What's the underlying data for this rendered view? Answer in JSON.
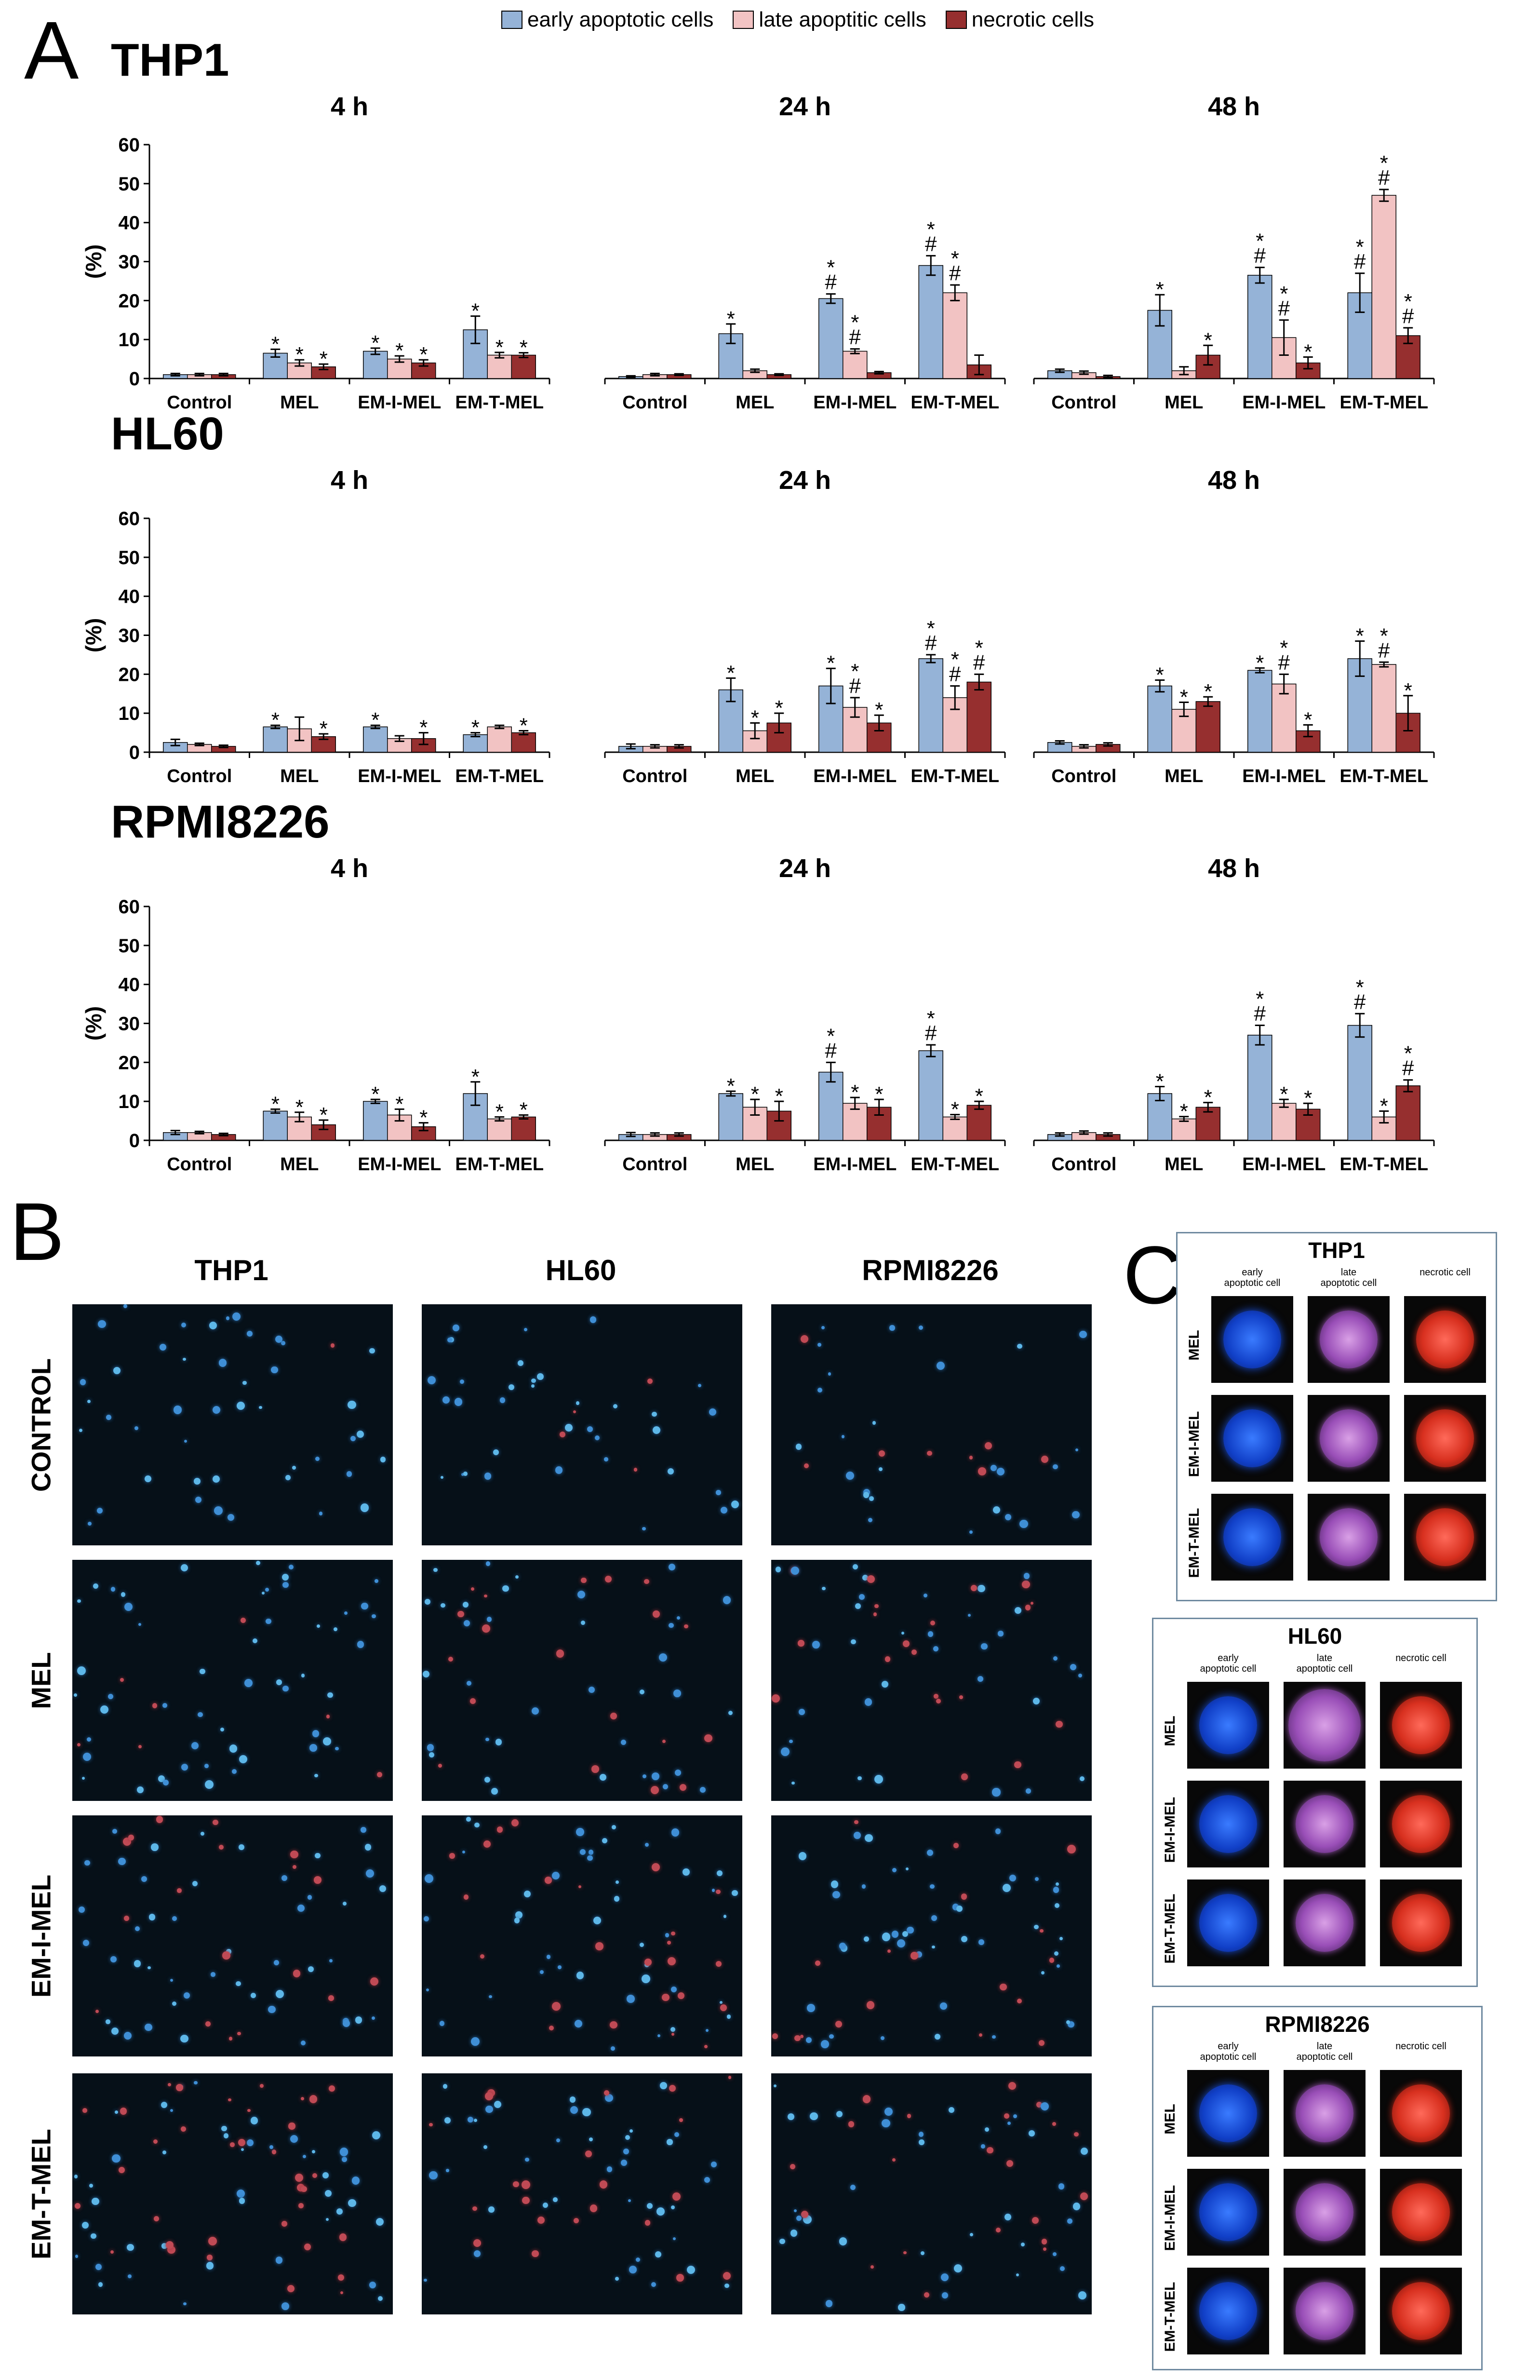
{
  "panels": {
    "a": "A",
    "b": "B",
    "c": "C"
  },
  "legend": [
    {
      "label": "early apoptotic cells",
      "color": "#95b3d7"
    },
    {
      "label": "late apoptitic cells",
      "color": "#f2c3c3"
    },
    {
      "label": "necrotic cells",
      "color": "#962f2f"
    }
  ],
  "chart_data": {
    "type": "bar",
    "ylabel": "(%)",
    "ylim": [
      0,
      60
    ],
    "yticks": [
      0,
      10,
      20,
      30,
      40,
      50,
      60
    ],
    "series_names": [
      "early apoptotic cells",
      "late apoptitic cells",
      "necrotic cells"
    ],
    "categories": [
      "Control",
      "MEL",
      "EM-I-MEL",
      "EM-T-MEL"
    ],
    "cell_lines": [
      {
        "name": "THP1",
        "panels": [
          {
            "title": "4 h",
            "values": [
              [
                1,
                1,
                1
              ],
              [
                6.5,
                4,
                3
              ],
              [
                7,
                5,
                4
              ],
              [
                12.5,
                6,
                6
              ]
            ],
            "errors": [
              [
                0.3,
                0.3,
                0.3
              ],
              [
                1,
                0.8,
                0.7
              ],
              [
                0.8,
                0.8,
                0.8
              ],
              [
                3.5,
                0.7,
                0.6
              ]
            ],
            "marks": [
              [
                "",
                "",
                ""
              ],
              [
                "*",
                "*",
                "*"
              ],
              [
                "*",
                "*",
                "*"
              ],
              [
                "*",
                "*",
                "*"
              ]
            ]
          },
          {
            "title": "24 h",
            "values": [
              [
                0.5,
                1,
                1
              ],
              [
                11.5,
                2,
                1
              ],
              [
                20.5,
                7,
                1.5
              ],
              [
                29,
                22,
                3.5
              ]
            ],
            "errors": [
              [
                0.2,
                0.3,
                0.2
              ],
              [
                2.5,
                0.4,
                0.2
              ],
              [
                1.2,
                0.6,
                0.3
              ],
              [
                2.5,
                2,
                2.5
              ]
            ],
            "marks": [
              [
                "",
                "",
                ""
              ],
              [
                "*",
                "",
                ""
              ],
              [
                "*\n#",
                "*\n#",
                ""
              ],
              [
                "*\n#",
                "*\n#",
                ""
              ]
            ]
          },
          {
            "title": "48 h",
            "values": [
              [
                2,
                1.5,
                0.5
              ],
              [
                17.5,
                2,
                6
              ],
              [
                26.5,
                10.5,
                4
              ],
              [
                22,
                47,
                11
              ]
            ],
            "errors": [
              [
                0.4,
                0.4,
                0.3
              ],
              [
                4,
                1,
                2.5
              ],
              [
                2,
                4.5,
                1.5
              ],
              [
                5,
                1.5,
                2
              ]
            ],
            "marks": [
              [
                "",
                "",
                ""
              ],
              [
                "*",
                "",
                "*"
              ],
              [
                "*\n#",
                "*\n#",
                "*"
              ],
              [
                "*\n#",
                "*\n#",
                "*\n#"
              ]
            ]
          }
        ]
      },
      {
        "name": "HL60",
        "panels": [
          {
            "title": "4 h",
            "values": [
              [
                2.5,
                2,
                1.5
              ],
              [
                6.5,
                6,
                4
              ],
              [
                6.5,
                3.5,
                3.5
              ],
              [
                4.5,
                6.5,
                5
              ]
            ],
            "errors": [
              [
                0.8,
                0.3,
                0.3
              ],
              [
                0.4,
                3,
                0.7
              ],
              [
                0.4,
                0.7,
                1.5
              ],
              [
                0.5,
                0.4,
                0.5
              ]
            ],
            "marks": [
              [
                "",
                "",
                ""
              ],
              [
                "*",
                "",
                "*"
              ],
              [
                "*",
                "",
                "*"
              ],
              [
                "*",
                "",
                "*"
              ]
            ]
          },
          {
            "title": "24 h",
            "values": [
              [
                1.5,
                1.5,
                1.5
              ],
              [
                16,
                5.5,
                7.5
              ],
              [
                17,
                11.5,
                7.5
              ],
              [
                24,
                14,
                18
              ]
            ],
            "errors": [
              [
                0.6,
                0.4,
                0.4
              ],
              [
                3,
                2,
                2.5
              ],
              [
                4.5,
                2.5,
                2
              ],
              [
                1,
                3,
                2
              ]
            ],
            "marks": [
              [
                "",
                "",
                ""
              ],
              [
                "*",
                "*",
                "*"
              ],
              [
                "*",
                "*\n#",
                "*"
              ],
              [
                "*\n#",
                "*\n#",
                "*\n#"
              ]
            ]
          },
          {
            "title": "48 h",
            "values": [
              [
                2.5,
                1.5,
                2
              ],
              [
                17,
                11,
                13
              ],
              [
                21,
                17.5,
                5.5
              ],
              [
                24,
                22.5,
                10
              ]
            ],
            "errors": [
              [
                0.4,
                0.4,
                0.4
              ],
              [
                1.5,
                1.8,
                1.2
              ],
              [
                0.6,
                2.5,
                1.5
              ],
              [
                4.5,
                0.6,
                4.5
              ]
            ],
            "marks": [
              [
                "",
                "",
                ""
              ],
              [
                "*",
                "*",
                "*"
              ],
              [
                "*",
                "*\n#",
                "*"
              ],
              [
                "*",
                "*\n#",
                "*"
              ]
            ]
          }
        ]
      },
      {
        "name": "RPMI8226",
        "panels": [
          {
            "title": "4 h",
            "values": [
              [
                2,
                2,
                1.5
              ],
              [
                7.5,
                6,
                4
              ],
              [
                10,
                6.5,
                3.5
              ],
              [
                12,
                5.5,
                6
              ]
            ],
            "errors": [
              [
                0.5,
                0.3,
                0.3
              ],
              [
                0.5,
                1.2,
                1.2
              ],
              [
                0.5,
                1.5,
                1
              ],
              [
                3,
                0.5,
                0.5
              ]
            ],
            "marks": [
              [
                "",
                "",
                ""
              ],
              [
                "*",
                "*",
                "*"
              ],
              [
                "*",
                "*",
                "*"
              ],
              [
                "*",
                "*",
                "*"
              ]
            ]
          },
          {
            "title": "24 h",
            "values": [
              [
                1.5,
                1.5,
                1.5
              ],
              [
                12,
                8.5,
                7.5
              ],
              [
                17.5,
                9.5,
                8.5
              ],
              [
                23,
                6,
                9
              ]
            ],
            "errors": [
              [
                0.5,
                0.4,
                0.4
              ],
              [
                0.6,
                2,
                2.5
              ],
              [
                2.5,
                1.5,
                2
              ],
              [
                1.5,
                0.6,
                1
              ]
            ],
            "marks": [
              [
                "",
                "",
                ""
              ],
              [
                "*",
                "*",
                "*"
              ],
              [
                "*\n#",
                "*",
                "*"
              ],
              [
                "*\n#",
                "*",
                "*"
              ]
            ]
          },
          {
            "title": "48 h",
            "values": [
              [
                1.5,
                2,
                1.5
              ],
              [
                12,
                5.5,
                8.5
              ],
              [
                27,
                9.5,
                8
              ],
              [
                29.5,
                6,
                14
              ]
            ],
            "errors": [
              [
                0.4,
                0.4,
                0.4
              ],
              [
                1.8,
                0.6,
                1.2
              ],
              [
                2.5,
                1,
                1.5
              ],
              [
                3,
                1.5,
                1.5
              ]
            ],
            "marks": [
              [
                "",
                "",
                ""
              ],
              [
                "*",
                "*",
                "*"
              ],
              [
                "*\n#",
                "*",
                "*"
              ],
              [
                "*\n#",
                "*",
                "*\n#"
              ]
            ]
          }
        ]
      }
    ]
  },
  "section_b": {
    "columns": [
      "THP1",
      "HL60",
      "RPMI8226"
    ],
    "rows": [
      "CONTROL",
      "MEL",
      "EM-I-MEL",
      "EM-T-MEL"
    ]
  },
  "section_c": {
    "boxes": [
      {
        "title": "THP1",
        "cols": [
          "early\napoptotic cell",
          "late\napoptotic cell",
          "necrotic cell"
        ],
        "rows": [
          "MEL",
          "EM-I-MEL",
          "EM-T-MEL"
        ]
      },
      {
        "title": "HL60",
        "cols": [
          "early\napoptotic cell",
          "late\napoptotic cell",
          "necrotic cell"
        ],
        "rows": [
          "MEL",
          "EM-I-MEL",
          "EM-T-MEL"
        ]
      },
      {
        "title": "RPMI8226",
        "cols": [
          "early\napoptotic cell",
          "late\napoptotic cell",
          "necrotic cell"
        ],
        "rows": [
          "MEL",
          "EM-I-MEL",
          "EM-T-MEL"
        ]
      }
    ]
  }
}
